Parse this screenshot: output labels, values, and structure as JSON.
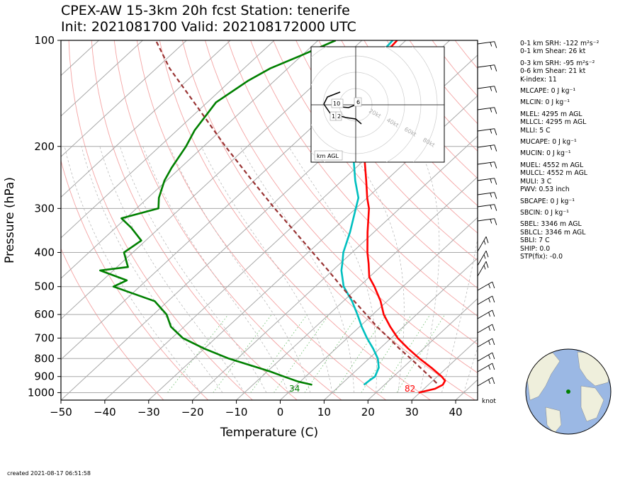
{
  "title": {
    "line1": "CPEX-AW 15-3km  20h fcst  Station: tenerife",
    "line2": "Init: 2021081700  Valid: 202108172000 UTC"
  },
  "created": "created 2021-08-17 06:51:58",
  "chart_data": {
    "type": "line",
    "subtype": "skew-T log-P",
    "xlabel": "Temperature (C)",
    "ylabel": "Pressure (hPa)",
    "xlim": [
      -50,
      45
    ],
    "ylim": [
      1050,
      100
    ],
    "y_scale": "log",
    "x_ticks": [
      -50,
      -40,
      -30,
      -20,
      -10,
      0,
      10,
      20,
      30,
      40
    ],
    "x_tick_labels": [
      "−50",
      "−40",
      "−30",
      "−20",
      "−10",
      "0",
      "10",
      "20",
      "30",
      "40"
    ],
    "y_ticks": [
      100,
      200,
      300,
      400,
      500,
      600,
      700,
      800,
      900,
      1000
    ],
    "y_tick_labels": [
      "100",
      "200",
      "300",
      "400",
      "500",
      "600",
      "700",
      "800",
      "900",
      "1000"
    ],
    "grid": true,
    "series": [
      {
        "color": "#ff0000",
        "points": [
          [
            1000,
            29.7
          ],
          [
            975,
            32.5
          ],
          [
            950,
            33.3
          ],
          [
            925,
            32.8
          ],
          [
            900,
            31.0
          ],
          [
            850,
            26.5
          ],
          [
            800,
            21.5
          ],
          [
            750,
            16.5
          ],
          [
            700,
            11.5
          ],
          [
            650,
            7.0
          ],
          [
            600,
            2.5
          ],
          [
            550,
            -1.5
          ],
          [
            500,
            -6.5
          ],
          [
            470,
            -10.0
          ],
          [
            430,
            -13.5
          ],
          [
            400,
            -16.5
          ],
          [
            350,
            -21.5
          ],
          [
            300,
            -27.0
          ],
          [
            280,
            -30.0
          ],
          [
            250,
            -34.5
          ],
          [
            200,
            -43.5
          ],
          [
            180,
            -47.5
          ],
          [
            150,
            -55.0
          ],
          [
            130,
            -58.0
          ],
          [
            120,
            -60.5
          ],
          [
            110,
            -61.5
          ],
          [
            100,
            -62.0
          ]
        ]
      },
      {
        "color": "#00bfbf",
        "points": [
          [
            950,
            15.3
          ],
          [
            925,
            15.5
          ],
          [
            900,
            15.8
          ],
          [
            850,
            14.5
          ],
          [
            800,
            12.0
          ],
          [
            750,
            8.5
          ],
          [
            700,
            4.5
          ],
          [
            650,
            0.5
          ],
          [
            600,
            -3.5
          ],
          [
            550,
            -8.0
          ],
          [
            500,
            -13.5
          ],
          [
            450,
            -18.0
          ],
          [
            430,
            -19.5
          ],
          [
            400,
            -22.0
          ],
          [
            350,
            -25.5
          ],
          [
            300,
            -30.0
          ],
          [
            280,
            -32.0
          ],
          [
            250,
            -37.0
          ],
          [
            200,
            -46.0
          ],
          [
            180,
            -50.0
          ],
          [
            150,
            -57.5
          ],
          [
            130,
            -60.0
          ],
          [
            120,
            -62.0
          ],
          [
            110,
            -62.5
          ],
          [
            100,
            -63.0
          ]
        ]
      },
      {
        "color": "#008000",
        "points": [
          [
            950,
            3.5
          ],
          [
            930,
            -0.5
          ],
          [
            900,
            -5.0
          ],
          [
            870,
            -9.5
          ],
          [
            850,
            -13.0
          ],
          [
            800,
            -22.0
          ],
          [
            750,
            -30.0
          ],
          [
            700,
            -37.5
          ],
          [
            650,
            -43.0
          ],
          [
            600,
            -47.0
          ],
          [
            550,
            -53.0
          ],
          [
            500,
            -66.0
          ],
          [
            480,
            -64.5
          ],
          [
            450,
            -73.0
          ],
          [
            440,
            -67.5
          ],
          [
            400,
            -72.0
          ],
          [
            370,
            -71.0
          ],
          [
            340,
            -76.5
          ],
          [
            320,
            -81.0
          ],
          [
            300,
            -75.0
          ],
          [
            280,
            -77.5
          ],
          [
            250,
            -80.5
          ],
          [
            230,
            -82.0
          ],
          [
            200,
            -84.0
          ],
          [
            180,
            -86.0
          ],
          [
            150,
            -88.0
          ],
          [
            130,
            -86.0
          ],
          [
            120,
            -84.0
          ],
          [
            110,
            -80.0
          ],
          [
            100,
            -76.0
          ]
        ]
      },
      {
        "color": "#993333",
        "points": [
          [
            940,
            31.5
          ],
          [
            900,
            28.3
          ],
          [
            850,
            24.0
          ],
          [
            800,
            19.5
          ],
          [
            750,
            14.5
          ],
          [
            700,
            9.5
          ],
          [
            650,
            4.0
          ],
          [
            600,
            -1.5
          ],
          [
            550,
            -7.5
          ],
          [
            500,
            -14.0
          ],
          [
            450,
            -21.0
          ],
          [
            400,
            -29.0
          ],
          [
            350,
            -38.0
          ],
          [
            300,
            -48.5
          ],
          [
            250,
            -60.5
          ],
          [
            200,
            -75.0
          ],
          [
            150,
            -93.0
          ],
          [
            120,
            -107.0
          ],
          [
            100,
            -117.0
          ]
        ]
      }
    ],
    "annotations": {
      "surface_temp_f": "82",
      "surface_dewpoint_f": "34"
    },
    "wind_unit": "knot",
    "hodograph": {
      "ring_labels": [
        "20kt",
        "40kt",
        "60kt",
        "80kt"
      ],
      "height_labels": [
        "1",
        "2",
        "6",
        "10"
      ],
      "caption": "km AGL"
    }
  },
  "indices": {
    "srh01": "0-1 km SRH: -122 m²s⁻²",
    "shear01": "0-1 km Shear: 26 kt",
    "srh03": "0-3 km SRH: -95 m²s⁻²",
    "shear06": "0-6 km Shear: 21 kt",
    "kindex": "K-index: 11",
    "mlcape": "MLCAPE: 0 J kg⁻¹",
    "mlcin": "MLCIN: 0 J kg⁻¹",
    "mlel": "MLEL: 4295 m AGL",
    "mllcl": "MLLCL: 4295 m AGL",
    "mlli": "MLLI: 5 C",
    "mucape": "MUCAPE: 0 J kg⁻¹",
    "mucin": "MUCIN: 0 J kg⁻¹",
    "muel": "MUEL: 4552 m AGL",
    "mulcl": "MULCL: 4552 m AGL",
    "muli": "MULI: 3 C",
    "pwv": "PWV: 0.53 inch",
    "sbcape": "SBCAPE: 0 J kg⁻¹",
    "sbcin": "SBCIN: 0 J kg⁻¹",
    "sbel": "SBEL: 3346 m AGL",
    "sblcl": "SBLCL: 3346 m AGL",
    "sbli": "SBLI: 7 C",
    "ship": "SHIP: 0.0",
    "stp": "STP(fix): -0.0"
  }
}
